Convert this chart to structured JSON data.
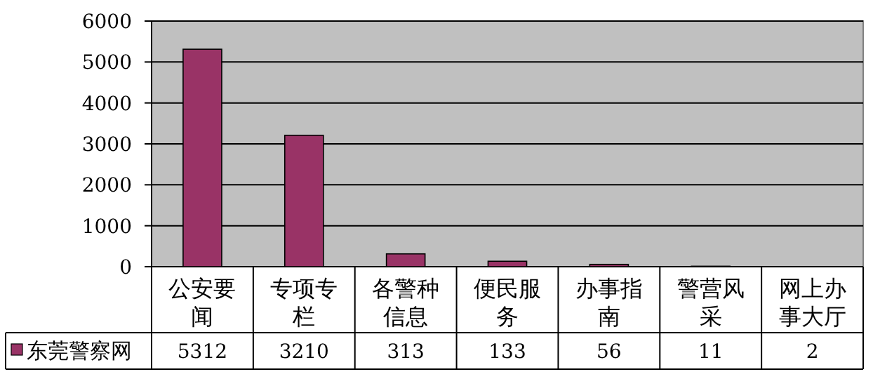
{
  "chart_data": {
    "type": "bar",
    "categories": [
      "公安要闻",
      "专项专栏",
      "各警种信息",
      "便民服务",
      "办事指南",
      "警营风采",
      "网上办事大厅"
    ],
    "series": [
      {
        "name": "东莞警察网",
        "color": "#993366",
        "values": [
          5312,
          3210,
          313,
          133,
          56,
          11,
          2
        ]
      }
    ],
    "ylim": [
      0,
      6000
    ],
    "yticks": [
      0,
      1000,
      2000,
      3000,
      4000,
      5000,
      6000
    ],
    "grid": "y",
    "data_labels": true,
    "legend": "bottom"
  }
}
